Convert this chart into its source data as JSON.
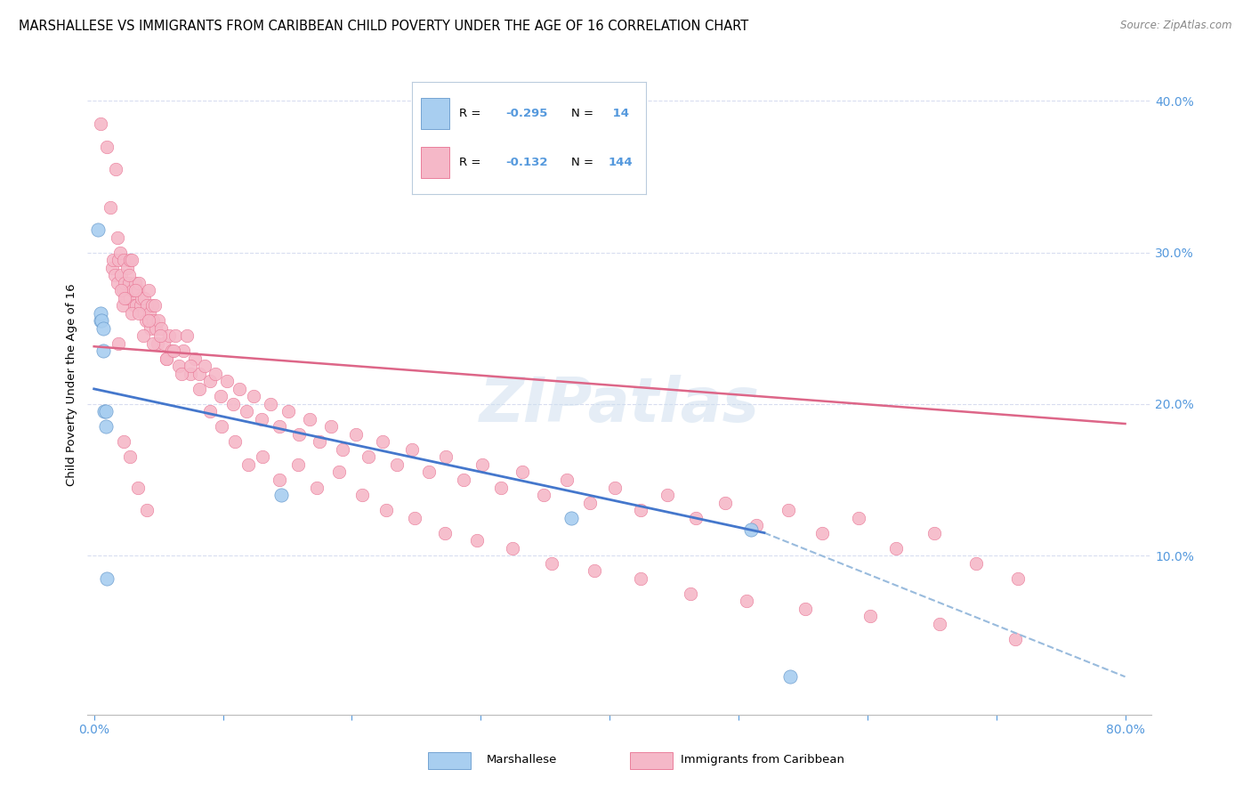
{
  "title": "MARSHALLESE VS IMMIGRANTS FROM CARIBBEAN CHILD POVERTY UNDER THE AGE OF 16 CORRELATION CHART",
  "source": "Source: ZipAtlas.com",
  "ylabel": "Child Poverty Under the Age of 16",
  "legend_entry1": "Marshallese",
  "legend_entry2": "Immigrants from Caribbean",
  "r1": "-0.295",
  "n1": " 14",
  "r2": "-0.132",
  "n2": "144",
  "blue_color": "#a8cef0",
  "pink_color": "#f5b8c8",
  "blue_edge": "#6699cc",
  "pink_edge": "#e87090",
  "blue_trend": "#4477cc",
  "blue_dash": "#99bbdd",
  "pink_trend": "#dd6688",
  "watermark": "ZIPatlas",
  "blue_dots_x": [
    0.003,
    0.005,
    0.005,
    0.006,
    0.007,
    0.007,
    0.008,
    0.009,
    0.009,
    0.01,
    0.145,
    0.37,
    0.51,
    0.54
  ],
  "blue_dots_y": [
    0.315,
    0.255,
    0.26,
    0.255,
    0.25,
    0.235,
    0.195,
    0.195,
    0.185,
    0.085,
    0.14,
    0.125,
    0.117,
    0.02
  ],
  "pink_dots_x": [
    0.005,
    0.01,
    0.013,
    0.014,
    0.015,
    0.016,
    0.017,
    0.018,
    0.018,
    0.019,
    0.02,
    0.021,
    0.022,
    0.022,
    0.023,
    0.024,
    0.025,
    0.026,
    0.027,
    0.028,
    0.028,
    0.029,
    0.03,
    0.031,
    0.032,
    0.033,
    0.034,
    0.035,
    0.036,
    0.037,
    0.038,
    0.039,
    0.04,
    0.041,
    0.042,
    0.043,
    0.044,
    0.045,
    0.046,
    0.047,
    0.048,
    0.049,
    0.05,
    0.052,
    0.054,
    0.056,
    0.058,
    0.06,
    0.063,
    0.066,
    0.069,
    0.072,
    0.075,
    0.078,
    0.082,
    0.086,
    0.09,
    0.094,
    0.098,
    0.103,
    0.108,
    0.113,
    0.118,
    0.124,
    0.13,
    0.137,
    0.144,
    0.151,
    0.159,
    0.167,
    0.175,
    0.184,
    0.193,
    0.203,
    0.213,
    0.224,
    0.235,
    0.247,
    0.26,
    0.273,
    0.287,
    0.301,
    0.316,
    0.332,
    0.349,
    0.367,
    0.385,
    0.404,
    0.424,
    0.445,
    0.467,
    0.49,
    0.514,
    0.539,
    0.565,
    0.593,
    0.622,
    0.652,
    0.684,
    0.717,
    0.019,
    0.021,
    0.024,
    0.027,
    0.029,
    0.032,
    0.035,
    0.038,
    0.042,
    0.046,
    0.051,
    0.056,
    0.062,
    0.068,
    0.075,
    0.082,
    0.09,
    0.099,
    0.109,
    0.12,
    0.131,
    0.144,
    0.158,
    0.173,
    0.19,
    0.208,
    0.227,
    0.249,
    0.272,
    0.297,
    0.325,
    0.355,
    0.388,
    0.424,
    0.463,
    0.506,
    0.552,
    0.602,
    0.656,
    0.715,
    0.023,
    0.028,
    0.034,
    0.041
  ],
  "pink_dots_y": [
    0.385,
    0.37,
    0.33,
    0.29,
    0.295,
    0.285,
    0.355,
    0.31,
    0.28,
    0.295,
    0.3,
    0.285,
    0.275,
    0.265,
    0.295,
    0.28,
    0.27,
    0.29,
    0.28,
    0.295,
    0.27,
    0.295,
    0.275,
    0.265,
    0.28,
    0.265,
    0.275,
    0.28,
    0.265,
    0.27,
    0.26,
    0.27,
    0.255,
    0.265,
    0.275,
    0.26,
    0.25,
    0.265,
    0.255,
    0.265,
    0.25,
    0.24,
    0.255,
    0.25,
    0.24,
    0.23,
    0.245,
    0.235,
    0.245,
    0.225,
    0.235,
    0.245,
    0.22,
    0.23,
    0.22,
    0.225,
    0.215,
    0.22,
    0.205,
    0.215,
    0.2,
    0.21,
    0.195,
    0.205,
    0.19,
    0.2,
    0.185,
    0.195,
    0.18,
    0.19,
    0.175,
    0.185,
    0.17,
    0.18,
    0.165,
    0.175,
    0.16,
    0.17,
    0.155,
    0.165,
    0.15,
    0.16,
    0.145,
    0.155,
    0.14,
    0.15,
    0.135,
    0.145,
    0.13,
    0.14,
    0.125,
    0.135,
    0.12,
    0.13,
    0.115,
    0.125,
    0.105,
    0.115,
    0.095,
    0.085,
    0.24,
    0.275,
    0.27,
    0.285,
    0.26,
    0.275,
    0.26,
    0.245,
    0.255,
    0.24,
    0.245,
    0.23,
    0.235,
    0.22,
    0.225,
    0.21,
    0.195,
    0.185,
    0.175,
    0.16,
    0.165,
    0.15,
    0.16,
    0.145,
    0.155,
    0.14,
    0.13,
    0.125,
    0.115,
    0.11,
    0.105,
    0.095,
    0.09,
    0.085,
    0.075,
    0.07,
    0.065,
    0.06,
    0.055,
    0.045,
    0.175,
    0.165,
    0.145,
    0.13
  ],
  "ylim_min": -0.005,
  "ylim_max": 0.43,
  "xlim_min": -0.005,
  "xlim_max": 0.82,
  "ytick_vals": [
    0.1,
    0.2,
    0.3,
    0.4
  ],
  "ytick_labels": [
    "10.0%",
    "20.0%",
    "30.0%",
    "40.0%"
  ],
  "xtick_positions": [
    0.0,
    0.1,
    0.2,
    0.3,
    0.4,
    0.5,
    0.6,
    0.7,
    0.8
  ],
  "xtick_labels": [
    "0.0%",
    "",
    "",
    "",
    "",
    "",
    "",
    "",
    "80.0%"
  ],
  "grid_color": "#d8ddf0",
  "background": "#ffffff",
  "title_fontsize": 10.5,
  "tick_color": "#5599dd"
}
